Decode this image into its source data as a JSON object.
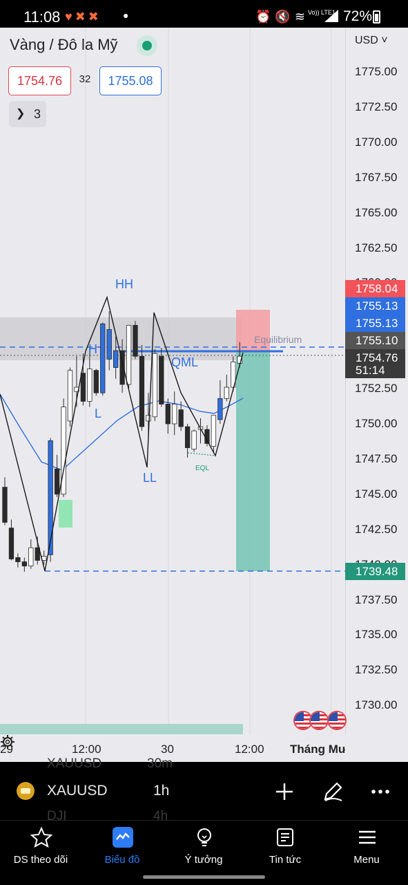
{
  "status_bar": {
    "time": "11:08",
    "battery": "72%",
    "network": "Vo)) LTE1"
  },
  "chart": {
    "symbol_title": "Vàng / Đô la Mỹ",
    "currency": "USD",
    "sell_price": "1754.76",
    "spread": "32",
    "buy_price": "1755.08",
    "indicator_count": "3",
    "price_ticks": [
      "1775.00",
      "1772.50",
      "1770.00",
      "1767.50",
      "1765.00",
      "1762.50",
      "1760.00",
      "1757.50",
      "1755.00",
      "1752.50",
      "1750.00",
      "1747.50",
      "1745.00",
      "1742.50",
      "1740.00",
      "1737.50",
      "1735.00",
      "1732.50",
      "1730.00"
    ],
    "price_tags": [
      {
        "label": "1758.04",
        "color": "#f2525a"
      },
      {
        "label": "1755.13",
        "color": "#2f6fdf"
      },
      {
        "label": "1755.13",
        "color": "#2f6fdf"
      },
      {
        "label": "1755.10",
        "color": "#555555"
      },
      {
        "label": "1754.76",
        "color": "#3a3a3a"
      },
      {
        "label": "51:14",
        "color": "#3a3a3a"
      },
      {
        "label": "1739.48",
        "color": "#23967c"
      }
    ],
    "annotations": {
      "hh": "HH",
      "h": "H",
      "l": "L",
      "ll": "LL",
      "qml": "QML",
      "eql": "EQL",
      "equilibrium": "Equilibrium"
    },
    "time_labels": [
      "29",
      "12:00",
      "30",
      "12:00"
    ],
    "range_label": "Tháng Mười"
  },
  "toolbar": {
    "ghost_top_symbol": "XAUUSD",
    "ghost_top_interval": "30m",
    "ghost_bottom_symbol": "DJI",
    "ghost_bottom_interval": "4h",
    "symbol": "XAUUSD",
    "interval": "1h"
  },
  "nav": [
    {
      "label": "DS theo dõi",
      "icon": "star-icon"
    },
    {
      "label": "Biểu đồ",
      "icon": "chart-icon"
    },
    {
      "label": "Ý tưởng",
      "icon": "lightbulb-icon"
    },
    {
      "label": "Tin tức",
      "icon": "news-icon"
    },
    {
      "label": "Menu",
      "icon": "menu-icon"
    }
  ],
  "colors": {
    "bull_candle": "#2f6fdf",
    "bear_candle": "#2a2a2a",
    "sell": "#d63440",
    "buy": "#2f6fdf",
    "target_zone": "#7fc8b8",
    "stop_zone": "#f3a1a4",
    "active_nav": "#2f7cf6"
  },
  "candles": [
    {
      "o": 1745.5,
      "h": 1746.2,
      "l": 1742.8,
      "c": 1743.0
    },
    {
      "o": 1742.6,
      "h": 1743.2,
      "l": 1740.3,
      "c": 1740.4
    },
    {
      "o": 1740.5,
      "h": 1740.8,
      "l": 1739.8,
      "c": 1740.2
    },
    {
      "o": 1740.2,
      "h": 1740.5,
      "l": 1739.5,
      "c": 1739.9
    },
    {
      "o": 1739.9,
      "h": 1741.8,
      "l": 1739.7,
      "c": 1741.2
    },
    {
      "o": 1741.2,
      "h": 1742.0,
      "l": 1740.0,
      "c": 1740.3
    },
    {
      "o": 1740.3,
      "h": 1741.0,
      "l": 1740.0,
      "c": 1740.6
    },
    {
      "o": 1740.7,
      "h": 1749.0,
      "l": 1740.2,
      "c": 1748.8
    },
    {
      "o": 1746.8,
      "h": 1747.8,
      "l": 1744.8,
      "c": 1745.0
    },
    {
      "o": 1745.0,
      "h": 1751.8,
      "l": 1744.8,
      "c": 1751.2
    },
    {
      "o": 1750.2,
      "h": 1754.0,
      "l": 1749.8,
      "c": 1753.8
    },
    {
      "o": 1752.3,
      "h": 1754.8,
      "l": 1751.2,
      "c": 1752.6
    },
    {
      "o": 1753.6,
      "h": 1755.0,
      "l": 1751.3,
      "c": 1751.6
    },
    {
      "o": 1751.6,
      "h": 1755.5,
      "l": 1751.2,
      "c": 1753.9
    },
    {
      "o": 1753.8,
      "h": 1753.9,
      "l": 1752.0,
      "c": 1752.2
    },
    {
      "o": 1752.2,
      "h": 1757.2,
      "l": 1752.0,
      "c": 1757.1
    },
    {
      "o": 1756.7,
      "h": 1758.0,
      "l": 1753.8,
      "c": 1754.6
    },
    {
      "o": 1754.0,
      "h": 1756.2,
      "l": 1753.2,
      "c": 1755.2
    },
    {
      "o": 1755.2,
      "h": 1756.0,
      "l": 1752.2,
      "c": 1752.8
    },
    {
      "o": 1752.8,
      "h": 1757.0,
      "l": 1752.5,
      "c": 1757.0
    },
    {
      "o": 1757.0,
      "h": 1757.3,
      "l": 1754.6,
      "c": 1754.8
    },
    {
      "o": 1754.8,
      "h": 1755.6,
      "l": 1749.5,
      "c": 1749.8
    },
    {
      "o": 1750.2,
      "h": 1752.2,
      "l": 1749.0,
      "c": 1750.6
    },
    {
      "o": 1750.5,
      "h": 1755.3,
      "l": 1750.2,
      "c": 1755.0
    },
    {
      "o": 1754.8,
      "h": 1755.4,
      "l": 1751.2,
      "c": 1751.4
    },
    {
      "o": 1751.4,
      "h": 1751.8,
      "l": 1749.3,
      "c": 1750.0
    },
    {
      "o": 1750.0,
      "h": 1752.3,
      "l": 1749.2,
      "c": 1751.4
    },
    {
      "o": 1751.0,
      "h": 1751.6,
      "l": 1749.5,
      "c": 1749.8
    },
    {
      "o": 1749.8,
      "h": 1750.0,
      "l": 1747.6,
      "c": 1748.3
    },
    {
      "o": 1748.2,
      "h": 1749.6,
      "l": 1748.0,
      "c": 1749.5
    },
    {
      "o": 1749.6,
      "h": 1750.4,
      "l": 1748.6,
      "c": 1749.8
    },
    {
      "o": 1749.6,
      "h": 1749.9,
      "l": 1748.4,
      "c": 1748.6
    },
    {
      "o": 1748.4,
      "h": 1750.6,
      "l": 1748.0,
      "c": 1750.6
    },
    {
      "o": 1750.3,
      "h": 1753.1,
      "l": 1750.0,
      "c": 1751.8
    },
    {
      "o": 1751.8,
      "h": 1753.5,
      "l": 1751.6,
      "c": 1752.6
    },
    {
      "o": 1752.6,
      "h": 1754.8,
      "l": 1752.3,
      "c": 1754.4
    },
    {
      "o": 1754.3,
      "h": 1755.8,
      "l": 1754.0,
      "c": 1754.8
    }
  ]
}
